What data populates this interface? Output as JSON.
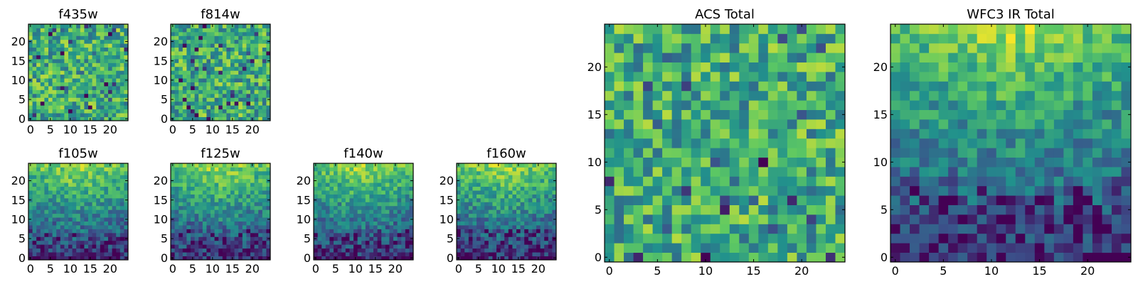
{
  "chart_data": [
    {
      "type": "heatmap",
      "title": "f435w",
      "xticks": [
        "0",
        "5",
        "10",
        "15",
        "20"
      ],
      "yticks": [
        "0",
        "5",
        "10",
        "15",
        "20"
      ],
      "xlim": [
        0,
        25
      ],
      "ylim": [
        0,
        25
      ],
      "grid": false,
      "colormap": "viridis",
      "pattern": "noise",
      "seed": 11
    },
    {
      "type": "heatmap",
      "title": "f814w",
      "xticks": [
        "0",
        "5",
        "10",
        "15",
        "20"
      ],
      "yticks": [
        "0",
        "5",
        "10",
        "15",
        "20"
      ],
      "xlim": [
        0,
        25
      ],
      "ylim": [
        0,
        25
      ],
      "grid": false,
      "colormap": "viridis",
      "pattern": "noise",
      "seed": 23
    },
    {
      "type": "heatmap",
      "title": "f105w",
      "xticks": [
        "0",
        "5",
        "10",
        "15",
        "20"
      ],
      "yticks": [
        "0",
        "5",
        "10",
        "15",
        "20"
      ],
      "xlim": [
        0,
        25
      ],
      "ylim": [
        0,
        25
      ],
      "grid": false,
      "colormap": "viridis",
      "pattern": "ir",
      "seed": 37
    },
    {
      "type": "heatmap",
      "title": "f125w",
      "xticks": [
        "0",
        "5",
        "10",
        "15",
        "20"
      ],
      "yticks": [
        "0",
        "5",
        "10",
        "15",
        "20"
      ],
      "xlim": [
        0,
        25
      ],
      "ylim": [
        0,
        25
      ],
      "grid": false,
      "colormap": "viridis",
      "pattern": "ir",
      "seed": 41
    },
    {
      "type": "heatmap",
      "title": "f140w",
      "xticks": [
        "0",
        "5",
        "10",
        "15",
        "20"
      ],
      "yticks": [
        "0",
        "5",
        "10",
        "15",
        "20"
      ],
      "xlim": [
        0,
        25
      ],
      "ylim": [
        0,
        25
      ],
      "grid": false,
      "colormap": "viridis",
      "pattern": "ir",
      "seed": 53
    },
    {
      "type": "heatmap",
      "title": "f160w",
      "xticks": [
        "0",
        "5",
        "10",
        "15",
        "20"
      ],
      "yticks": [
        "0",
        "5",
        "10",
        "15",
        "20"
      ],
      "xlim": [
        0,
        25
      ],
      "ylim": [
        0,
        25
      ],
      "grid": false,
      "colormap": "viridis",
      "pattern": "ir",
      "seed": 67
    },
    {
      "type": "heatmap",
      "title": "ACS Total",
      "xticks": [
        "0",
        "5",
        "10",
        "15",
        "20"
      ],
      "yticks": [
        "0",
        "5",
        "10",
        "15",
        "20"
      ],
      "xlim": [
        0,
        25
      ],
      "ylim": [
        0,
        25
      ],
      "grid": false,
      "colormap": "viridis",
      "pattern": "noise",
      "seed": 79
    },
    {
      "type": "heatmap",
      "title": "WFC3 IR Total",
      "xticks": [
        "0",
        "5",
        "10",
        "15",
        "20"
      ],
      "yticks": [
        "0",
        "5",
        "10",
        "15",
        "20"
      ],
      "xlim": [
        0,
        25
      ],
      "ylim": [
        0,
        25
      ],
      "grid": false,
      "colormap": "viridis",
      "pattern": "ir",
      "seed": 83
    }
  ],
  "colors": {
    "viridis": [
      "#440154",
      "#3b528b",
      "#21918c",
      "#5ec962",
      "#fde725"
    ],
    "axes": "#000000",
    "background": "#ffffff"
  }
}
